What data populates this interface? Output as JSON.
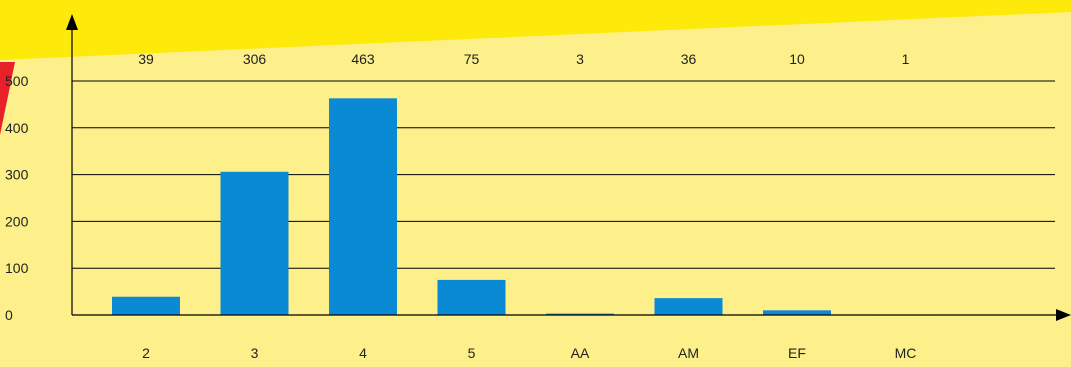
{
  "colors": {
    "background": "#fdf08a",
    "banner": "#fde90a",
    "accent_red": "#e8202a",
    "bar": "#0a8ad4",
    "axis": "#000000"
  },
  "chart_data": {
    "type": "bar",
    "categories": [
      "2",
      "3",
      "4",
      "5",
      "AA",
      "AM",
      "EF",
      "MC"
    ],
    "values": [
      39,
      306,
      463,
      75,
      3,
      36,
      10,
      1
    ],
    "data_labels": [
      "39",
      "306",
      "463",
      "75",
      "3",
      "36",
      "10",
      "1"
    ],
    "y_ticks": [
      "0",
      "100",
      "200",
      "300",
      "400",
      "500"
    ],
    "ylim": [
      0,
      500
    ],
    "grid": true,
    "title": "",
    "xlabel": "",
    "ylabel": ""
  }
}
